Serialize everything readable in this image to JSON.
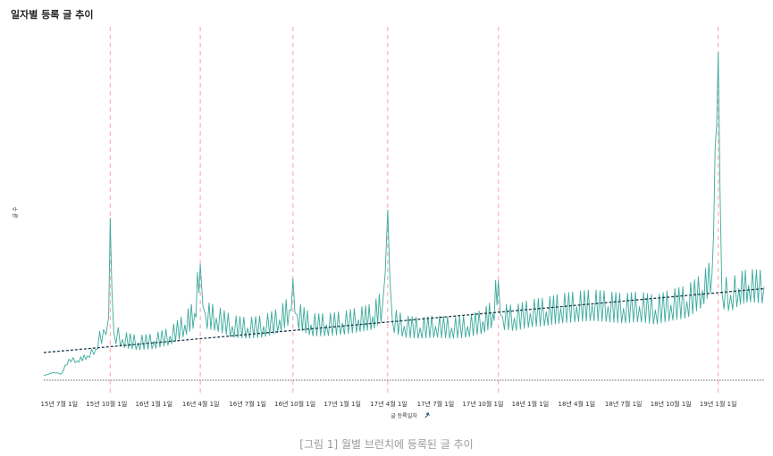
{
  "title": "일자별 등록 글 추이",
  "caption": "[그림 1] 월별 브런치에 등록된 글 추이",
  "colors": {
    "series": "#3aaa9c",
    "trend": "#1f3a4a",
    "baseline": "#333333",
    "marker": "#f4a6a6"
  },
  "chart_data": {
    "type": "line",
    "title": "일자별 등록 글 추이",
    "xlabel": "글 등록일자",
    "ylabel": "글 수",
    "grid": false,
    "x_ticks": [
      "15년 7월 1일",
      "15년 10월 1일",
      "16년 1월 1일",
      "16년 4월 1일",
      "16년 7월 1일",
      "16년 10월 1일",
      "17년 1월 1일",
      "17년 4월 1일",
      "17년 7월 1일",
      "17년 10월 1일",
      "18년 1월 1일",
      "18년 4월 1일",
      "18년 7월 1일",
      "18년 10월 1일",
      "19년 1월 1일"
    ],
    "x_range": [
      "2015-06-01",
      "2019-03-31"
    ],
    "y_ticks_shown": false,
    "vertical_markers": [
      "2015-10-08",
      "2016-03-31",
      "2016-09-27",
      "2017-03-30",
      "2017-10-31",
      "2019-01-01"
    ],
    "series_points": [
      [
        "2015-06-01",
        0
      ],
      [
        "2015-06-20",
        2
      ],
      [
        "2015-07-05",
        1
      ],
      [
        "2015-07-20",
        10
      ],
      [
        "2015-08-05",
        9
      ],
      [
        "2015-08-25",
        12
      ],
      [
        "2015-09-10",
        16
      ],
      [
        "2015-09-25",
        28
      ],
      [
        "2015-10-05",
        36
      ],
      [
        "2015-10-08",
        96
      ],
      [
        "2015-10-15",
        26
      ],
      [
        "2015-11-01",
        22
      ],
      [
        "2015-12-01",
        20
      ],
      [
        "2016-01-01",
        21
      ],
      [
        "2016-02-01",
        24
      ],
      [
        "2016-03-01",
        31
      ],
      [
        "2016-03-20",
        38
      ],
      [
        "2016-03-31",
        68
      ],
      [
        "2016-04-10",
        37
      ],
      [
        "2016-05-01",
        35
      ],
      [
        "2016-06-01",
        30
      ],
      [
        "2016-07-01",
        29
      ],
      [
        "2016-08-01",
        30
      ],
      [
        "2016-09-01",
        34
      ],
      [
        "2016-09-20",
        40
      ],
      [
        "2016-09-27",
        59
      ],
      [
        "2016-10-05",
        37
      ],
      [
        "2016-11-01",
        31
      ],
      [
        "2016-12-01",
        31
      ],
      [
        "2017-01-01",
        32
      ],
      [
        "2017-02-01",
        34
      ],
      [
        "2017-03-01",
        36
      ],
      [
        "2017-03-20",
        43
      ],
      [
        "2017-03-30",
        101
      ],
      [
        "2017-04-08",
        34
      ],
      [
        "2017-05-01",
        30
      ],
      [
        "2017-06-01",
        29
      ],
      [
        "2017-07-01",
        30
      ],
      [
        "2017-08-01",
        29
      ],
      [
        "2017-09-01",
        30
      ],
      [
        "2017-10-01",
        33
      ],
      [
        "2017-10-20",
        38
      ],
      [
        "2017-10-31",
        58
      ],
      [
        "2017-11-08",
        36
      ],
      [
        "2017-12-01",
        35
      ],
      [
        "2018-01-01",
        38
      ],
      [
        "2018-02-01",
        39
      ],
      [
        "2018-03-01",
        41
      ],
      [
        "2018-04-01",
        42
      ],
      [
        "2018-05-01",
        43
      ],
      [
        "2018-06-01",
        42
      ],
      [
        "2018-07-01",
        41
      ],
      [
        "2018-08-01",
        42
      ],
      [
        "2018-09-01",
        40
      ],
      [
        "2018-10-01",
        43
      ],
      [
        "2018-11-01",
        45
      ],
      [
        "2018-12-01",
        52
      ],
      [
        "2018-12-20",
        62
      ],
      [
        "2019-01-01",
        197
      ],
      [
        "2019-01-08",
        51
      ],
      [
        "2019-01-25",
        49
      ],
      [
        "2019-02-10",
        53
      ],
      [
        "2019-03-01",
        55
      ],
      [
        "2019-03-31",
        54
      ]
    ],
    "y_range": [
      -5,
      210
    ],
    "trend_line": {
      "start": [
        "2015-06-01",
        14
      ],
      "end": [
        "2019-03-31",
        53
      ]
    }
  }
}
